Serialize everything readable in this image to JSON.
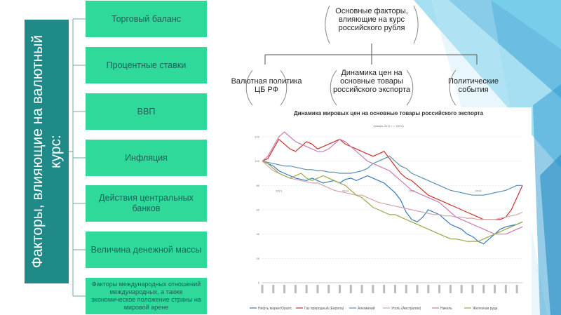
{
  "sidebar": {
    "title": "Факторы, влияющие на валютный курс:"
  },
  "factors": [
    {
      "label": "Торговый баланс"
    },
    {
      "label": "Процентные ставки"
    },
    {
      "label": "ВВП"
    },
    {
      "label": "Инфляция"
    },
    {
      "label": "Действия центральных банков"
    },
    {
      "label": "Величина денежной массы"
    },
    {
      "label": "Факторы международных отношений международных, а также экономическое положение страны на мировой арене"
    }
  ],
  "tree": {
    "root": "Основные факторы, влияющие на курс российского рубля",
    "children": [
      {
        "label": "Валютная политика ЦБ РФ"
      },
      {
        "label": "Динамика цен на основные товары российского экспорта"
      },
      {
        "label": "Политические события"
      }
    ]
  },
  "colors": {
    "sidebar": "#1f8a87",
    "factor_box": "#2fd99a",
    "factor_text": "#1e5f5a"
  },
  "chart_data": {
    "type": "line",
    "title": "Динамика мировых цен на основные товары российского экспорта",
    "subtitle": "(январь 2011 г. = 100%)",
    "yticks": [
      "120",
      "100",
      "80",
      "60",
      "40",
      "20",
      "0"
    ],
    "ylim": [
      0,
      120
    ],
    "year_labels": [
      "2013",
      "2014",
      "2015",
      "2016"
    ],
    "x": [
      0,
      1,
      2,
      3,
      4,
      5,
      6,
      7,
      8,
      9,
      10,
      11,
      12,
      13,
      14,
      15,
      16,
      17,
      18,
      19,
      20,
      21,
      22,
      23,
      24,
      25,
      26,
      27,
      28,
      29,
      30,
      31,
      32,
      33,
      34,
      35,
      36,
      37,
      38,
      39,
      40,
      41,
      42,
      43,
      44,
      45,
      46,
      47
    ],
    "series": [
      {
        "name": "Нефть марки Юралс",
        "color": "#3a7ab8",
        "values": [
          100,
          98,
          96,
          92,
          90,
          88,
          86,
          85,
          84,
          86,
          84,
          82,
          83,
          84,
          82,
          85,
          86,
          84,
          86,
          88,
          86,
          84,
          82,
          78,
          74,
          68,
          58,
          52,
          50,
          54,
          60,
          58,
          56,
          52,
          48,
          46,
          44,
          40,
          38,
          34,
          32,
          36,
          40,
          44,
          46,
          47,
          48,
          50
        ]
      },
      {
        "name": "Газ природный (Европа)",
        "color": "#c9302c",
        "values": [
          100,
          102,
          110,
          118,
          114,
          110,
          108,
          112,
          116,
          114,
          110,
          112,
          114,
          116,
          118,
          114,
          112,
          110,
          108,
          106,
          104,
          106,
          108,
          102,
          96,
          90,
          86,
          84,
          80,
          76,
          72,
          70,
          68,
          66,
          64,
          62,
          60,
          58,
          56,
          54,
          52,
          52,
          52,
          52,
          54,
          60,
          70,
          80
        ]
      },
      {
        "name": "Алюминий",
        "color": "#5b8fb0",
        "values": [
          100,
          99,
          98,
          97,
          96,
          96,
          95,
          94,
          93,
          93,
          92,
          92,
          91,
          91,
          90,
          90,
          90,
          91,
          92,
          94,
          98,
          100,
          102,
          104,
          100,
          96,
          94,
          90,
          88,
          86,
          84,
          82,
          80,
          78,
          76,
          75,
          74,
          73,
          72,
          72,
          72,
          73,
          74,
          75,
          76,
          78,
          80,
          80
        ]
      },
      {
        "name": "Уголь (Австралия)",
        "color": "#d4a6aa",
        "values": [
          100,
          96,
          92,
          90,
          88,
          86,
          85,
          84,
          83,
          82,
          82,
          80,
          78,
          76,
          75,
          74,
          73,
          72,
          72,
          70,
          68,
          66,
          65,
          64,
          63,
          62,
          61,
          60,
          59,
          58,
          57,
          56,
          56,
          55,
          55,
          54,
          54,
          53,
          53,
          52,
          52,
          52,
          52,
          53,
          54,
          55,
          56,
          58
        ]
      },
      {
        "name": "Никель",
        "color": "#c97cb4",
        "values": [
          100,
          104,
          112,
          120,
          124,
          120,
          116,
          114,
          112,
          110,
          108,
          108,
          110,
          114,
          118,
          116,
          112,
          108,
          104,
          100,
          98,
          96,
          94,
          92,
          88,
          84,
          80,
          76,
          74,
          72,
          70,
          68,
          66,
          62,
          58,
          54,
          52,
          50,
          48,
          46,
          44,
          42,
          40,
          40,
          40,
          42,
          44,
          46
        ]
      },
      {
        "name": "Железная руда",
        "color": "#9aa84a",
        "values": [
          100,
          98,
          94,
          90,
          88,
          86,
          88,
          90,
          86,
          84,
          86,
          88,
          86,
          84,
          82,
          80,
          76,
          72,
          70,
          66,
          62,
          60,
          58,
          56,
          56,
          54,
          52,
          50,
          48,
          46,
          44,
          42,
          40,
          38,
          36,
          36,
          35,
          34,
          34,
          34,
          36,
          38,
          40,
          42,
          44,
          46,
          48,
          50
        ]
      }
    ]
  }
}
